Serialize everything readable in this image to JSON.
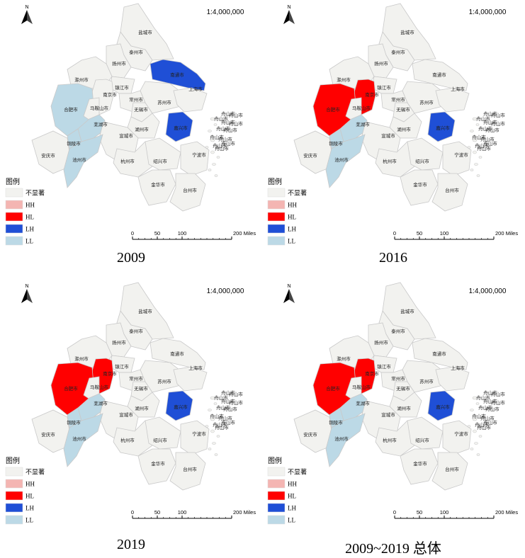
{
  "map": {
    "scale_label": "1:4,000,000",
    "north_label": "N",
    "legend": {
      "title": "图例",
      "items": [
        {
          "key": "ns",
          "label": "不显著",
          "color": "#f2f2ef"
        },
        {
          "key": "hh",
          "label": "HH",
          "color": "#f4b5b2"
        },
        {
          "key": "hl",
          "label": "HL",
          "color": "#ff0000"
        },
        {
          "key": "lh",
          "label": "LH",
          "color": "#1f4fd6"
        },
        {
          "key": "ll",
          "label": "LL",
          "color": "#bcd9e6"
        }
      ]
    },
    "scalebar": {
      "ticks": [
        "0",
        "50",
        "100",
        "200 Miles"
      ]
    },
    "zhoushan_label": "舟山市",
    "cities": [
      {
        "id": "yancheng",
        "name": "盐城市"
      },
      {
        "id": "taizhou_js",
        "name": "泰州市"
      },
      {
        "id": "yangzhou",
        "name": "扬州市"
      },
      {
        "id": "chuzhou",
        "name": "滁州市"
      },
      {
        "id": "nantong",
        "name": "南通市"
      },
      {
        "id": "zhenjiang",
        "name": "镇江市"
      },
      {
        "id": "nanjing",
        "name": "南京市"
      },
      {
        "id": "changzhou",
        "name": "常州市"
      },
      {
        "id": "hefei",
        "name": "合肥市"
      },
      {
        "id": "maanshan",
        "name": "马鞍山市"
      },
      {
        "id": "wuxi",
        "name": "无锡市"
      },
      {
        "id": "suzhou",
        "name": "苏州市"
      },
      {
        "id": "shanghai",
        "name": "上海市"
      },
      {
        "id": "wuhu",
        "name": "芜湖市"
      },
      {
        "id": "huzhou",
        "name": "湖州市"
      },
      {
        "id": "jiaxing",
        "name": "嘉兴市"
      },
      {
        "id": "xuancheng",
        "name": "宣城市"
      },
      {
        "id": "tongling",
        "name": "铜陵市"
      },
      {
        "id": "anqing",
        "name": "安庆市"
      },
      {
        "id": "chizhou",
        "name": "池州市"
      },
      {
        "id": "hangzhou",
        "name": "杭州市"
      },
      {
        "id": "shaoxing",
        "name": "绍兴市"
      },
      {
        "id": "ningbo",
        "name": "宁波市"
      },
      {
        "id": "jinhua",
        "name": "金华市"
      },
      {
        "id": "taizhou_zj",
        "name": "台州市"
      }
    ]
  },
  "panels": [
    {
      "caption": "2009",
      "classes": {
        "nantong": "lh",
        "jiaxing": "lh",
        "hefei": "ll",
        "wuhu": "ll",
        "tongling": "ll",
        "chizhou": "ll"
      }
    },
    {
      "caption": "2016",
      "classes": {
        "hefei": "hl",
        "nanjing": "hl",
        "jiaxing": "lh",
        "wuhu": "ll",
        "tongling": "ll",
        "chizhou": "ll"
      }
    },
    {
      "caption": "2019",
      "classes": {
        "hefei": "hl",
        "nanjing": "hl",
        "jiaxing": "lh",
        "wuhu": "ll",
        "tongling": "ll",
        "chizhou": "ll"
      }
    },
    {
      "caption": "2009~2019 总体",
      "classes": {
        "hefei": "hl",
        "nanjing": "hl",
        "jiaxing": "lh",
        "wuhu": "ll",
        "tongling": "ll",
        "chizhou": "ll"
      }
    }
  ]
}
